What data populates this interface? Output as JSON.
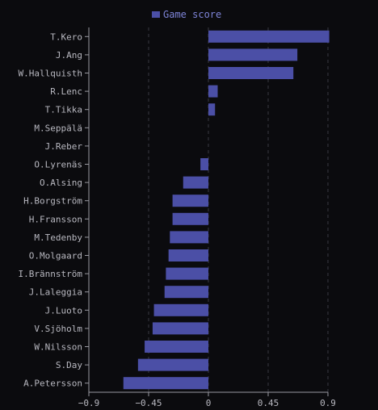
{
  "chart_data": {
    "type": "bar",
    "orientation": "horizontal",
    "title": "",
    "xlabel": "",
    "ylabel": "",
    "xlim": [
      -0.9,
      0.9
    ],
    "x_ticks": [
      -0.9,
      -0.45,
      0,
      0.45,
      0.9
    ],
    "x_tick_labels": [
      "−0.9",
      "−0.45",
      "0",
      "0.45",
      "0.9"
    ],
    "grid": "vertical dashed",
    "legend_position": "top-center",
    "bar_color": "#4b4fa6",
    "categories": [
      "T.Kero",
      "J.Ang",
      "W.Hallquisth",
      "R.Lenc",
      "T.Tikka",
      "M.Seppälä",
      "J.Reber",
      "O.Lyrenäs",
      "O.Alsing",
      "H.Borgström",
      "H.Fransson",
      "M.Tedenby",
      "O.Molgaard",
      "I.Brännström",
      "J.Laleggia",
      "J.Luoto",
      "V.Sjöholm",
      "W.Nilsson",
      "S.Day",
      "A.Petersson"
    ],
    "series": [
      {
        "name": "Game score",
        "values": [
          0.91,
          0.67,
          0.64,
          0.07,
          0.05,
          0.0,
          0.0,
          -0.06,
          -0.19,
          -0.27,
          -0.27,
          -0.29,
          -0.3,
          -0.32,
          -0.33,
          -0.41,
          -0.42,
          -0.48,
          -0.53,
          -0.64
        ]
      }
    ]
  }
}
